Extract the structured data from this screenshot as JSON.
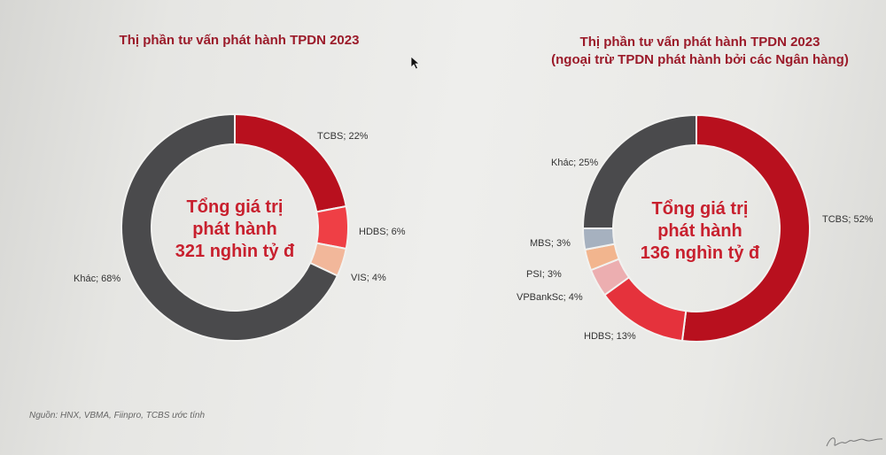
{
  "chart_data": [
    {
      "type": "pie",
      "title": "Thị phần tư vấn phát hành TPDN 2023",
      "center_text": [
        "Tổng giá trị",
        "phát hành",
        "321 nghìn tỷ đ"
      ],
      "slices": [
        {
          "label": "TCBS; 22%",
          "value": 22,
          "color": "#b8101e"
        },
        {
          "label": "HDBS; 6%",
          "value": 6,
          "color": "#ef3f45"
        },
        {
          "label": "VIS; 4%",
          "value": 4,
          "color": "#f2b79a"
        },
        {
          "label": "Khác; 68%",
          "value": 68,
          "color": "#4a4a4c"
        }
      ]
    },
    {
      "type": "pie",
      "title": "Thị phần tư vấn phát hành TPDN 2023",
      "subtitle": "(ngoại trừ TPDN phát hành bởi các Ngân hàng)",
      "center_text": [
        "Tổng giá trị",
        "phát hành",
        "136 nghìn tỷ đ"
      ],
      "slices": [
        {
          "label": "TCBS; 52%",
          "value": 52,
          "color": "#b8101e"
        },
        {
          "label": "HDBS; 13%",
          "value": 13,
          "color": "#e5323c"
        },
        {
          "label": "VPBankSc; 4%",
          "value": 4,
          "color": "#ecaeb0"
        },
        {
          "label": "PSI; 3%",
          "value": 3,
          "color": "#f2b58e"
        },
        {
          "label": "MBS; 3%",
          "value": 3,
          "color": "#a6b1bf"
        },
        {
          "label": "Khác; 25%",
          "value": 25,
          "color": "#4a4a4c"
        }
      ]
    }
  ],
  "footer": {
    "source": "Nguồn: HNX, VBMA, Fiinpro, TCBS ước tính"
  }
}
